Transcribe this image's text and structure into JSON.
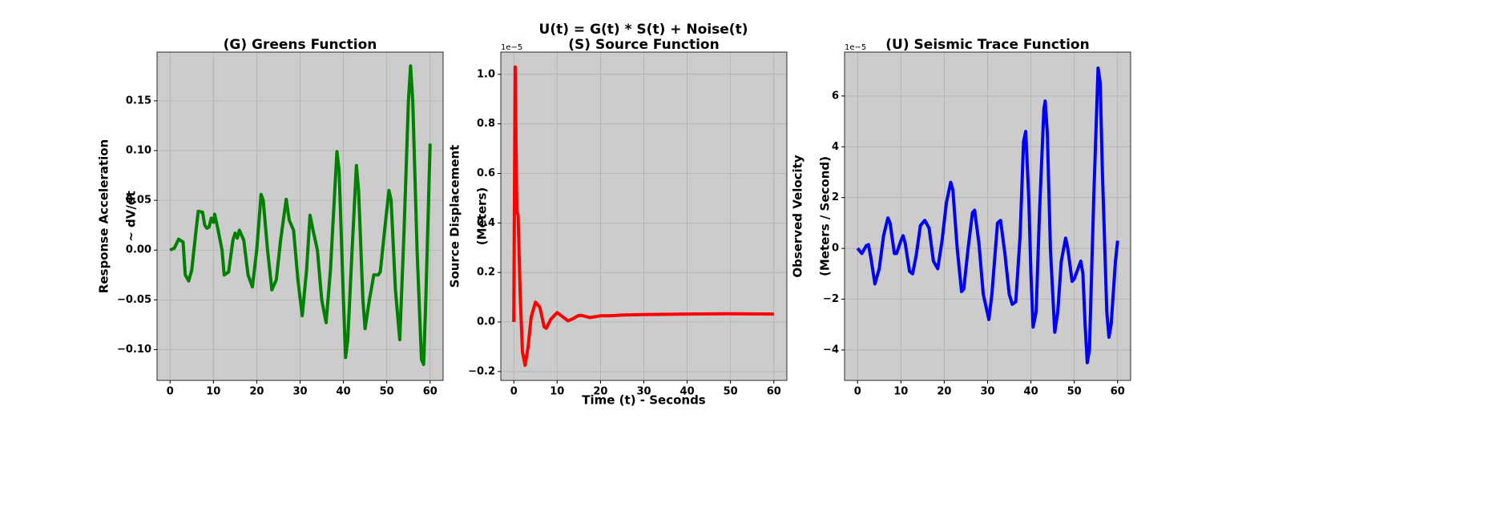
{
  "title": "U(t) = G(t) * S(t) + Noise(t)",
  "chart_data": [
    {
      "type": "line",
      "title": "(G) Greens Function",
      "ylabel": [
        "Response Acceleration",
        "~ dV/dt"
      ],
      "color": "#008000",
      "grid": true,
      "xlim": [
        -3,
        63
      ],
      "ylim": [
        -0.131,
        0.199
      ],
      "xticks": [
        0,
        10,
        20,
        30,
        40,
        50,
        60
      ],
      "yticks": [
        {
          "value": -0.1,
          "label": "−0.10"
        },
        {
          "value": -0.05,
          "label": "−0.05"
        },
        {
          "value": 0,
          "label": "0.00"
        },
        0.05,
        {
          "value": 0.1,
          "label": "0.10"
        },
        0.15
      ],
      "x": [
        0,
        1,
        2,
        3,
        3.5,
        4.3,
        5,
        6,
        6.5,
        7.5,
        8,
        8.5,
        9,
        9.5,
        10,
        10.3,
        11,
        12,
        12.5,
        13.5,
        14.5,
        15,
        15.5,
        16,
        17,
        18,
        19,
        20,
        21,
        21.5,
        22.5,
        23.5,
        24.5,
        25.5,
        26.8,
        27.5,
        28.5,
        29.5,
        30.5,
        31.5,
        32.3,
        33,
        34,
        35,
        36,
        37,
        38,
        38.5,
        39,
        40,
        40.5,
        41,
        42,
        43,
        43.5,
        44.5,
        45,
        46,
        47,
        48,
        48.5,
        49.5,
        50.5,
        51,
        52,
        53,
        54,
        55,
        55.5,
        56,
        57,
        58,
        58.5,
        59,
        60
      ],
      "values": [
        0,
        0.002,
        0.011,
        0.008,
        -0.025,
        -0.031,
        -0.02,
        0.02,
        0.039,
        0.038,
        0.025,
        0.022,
        0.023,
        0.032,
        0.028,
        0.036,
        0.022,
        0,
        -0.025,
        -0.022,
        0.01,
        0.017,
        0.012,
        0.02,
        0.01,
        -0.025,
        -0.037,
        0,
        0.056,
        0.05,
        0,
        -0.04,
        -0.03,
        0.01,
        0.051,
        0.03,
        0.02,
        -0.03,
        -0.066,
        -0.02,
        0.035,
        0.02,
        0,
        -0.05,
        -0.073,
        -0.02,
        0.06,
        0.099,
        0.08,
        -0.05,
        -0.108,
        -0.09,
        0,
        0.085,
        0.06,
        -0.05,
        -0.079,
        -0.05,
        -0.025,
        -0.025,
        -0.022,
        0.02,
        0.06,
        0.05,
        -0.04,
        -0.09,
        0.02,
        0.15,
        0.185,
        0.15,
        0,
        -0.11,
        -0.115,
        -0.05,
        0.107
      ]
    },
    {
      "type": "line",
      "title": "(S) Source Function",
      "ylabel": [
        "Source Displacement",
        "(Meters)"
      ],
      "xlabel": "Time (t) - Seconds",
      "offset_text": "1e−5",
      "color": "#ff0000",
      "grid": true,
      "xlim": [
        -3,
        63
      ],
      "ylim": [
        -0.236,
        1.09
      ],
      "xticks": [
        0,
        10,
        20,
        30,
        40,
        50,
        60
      ],
      "yticks": [
        {
          "value": -0.2,
          "label": "−0.2"
        },
        {
          "value": 0,
          "label": "0.0"
        },
        0.2,
        0.4,
        0.6,
        0.8,
        {
          "value": 1,
          "label": "1.0"
        }
      ],
      "x": [
        0,
        0.3,
        0.7,
        1,
        1.5,
        2,
        2.6,
        3.3,
        4,
        5,
        6,
        7,
        7.5,
        8.5,
        10,
        11,
        12.5,
        13.5,
        15,
        16,
        17.5,
        20,
        22,
        25,
        30,
        40,
        50,
        60
      ],
      "values": [
        0,
        1.03,
        0.45,
        0.43,
        0.1,
        -0.12,
        -0.175,
        -0.1,
        0.02,
        0.08,
        0.06,
        -0.02,
        -0.025,
        0.01,
        0.038,
        0.025,
        0.005,
        0.012,
        0.027,
        0.025,
        0.018,
        0.025,
        0.025,
        0.028,
        0.03,
        0.032,
        0.033,
        0.032
      ]
    },
    {
      "type": "line",
      "title": "(U) Seismic Trace Function",
      "ylabel": [
        "Observed Velocity",
        "(Meters / Second)"
      ],
      "offset_text": "1e−5",
      "color": "#0000ff",
      "grid": true,
      "xlim": [
        -3,
        63
      ],
      "ylim": [
        -5.2,
        7.73
      ],
      "xticks": [
        0,
        10,
        20,
        30,
        40,
        50,
        60
      ],
      "yticks": [
        {
          "value": -4,
          "label": "−4"
        },
        {
          "value": -2,
          "label": "−2"
        },
        0,
        2,
        4,
        6
      ],
      "x": [
        0,
        1,
        2,
        2.5,
        3,
        4,
        5,
        6,
        7,
        7.5,
        8.5,
        9,
        10,
        10.5,
        11,
        12,
        12.7,
        13.5,
        14.5,
        15.5,
        16.5,
        17.5,
        18.5,
        19.5,
        20.5,
        21.5,
        22,
        23,
        24,
        24.5,
        25.5,
        26.5,
        27,
        28,
        29,
        30.3,
        31,
        32.3,
        33,
        34,
        35,
        35.7,
        36.5,
        37.5,
        38.3,
        38.8,
        39.5,
        40,
        40.5,
        41.2,
        42,
        43,
        43.3,
        43.8,
        44.5,
        45.5,
        46.2,
        47,
        48,
        48.5,
        49.5,
        50,
        51.5,
        52,
        52.5,
        53,
        53.5,
        54.5,
        55.5,
        56,
        56.5,
        57.5,
        58,
        58.5,
        59.5,
        60
      ],
      "values": [
        0,
        -0.2,
        0.1,
        0.15,
        -0.3,
        -1.4,
        -0.8,
        0.5,
        1.2,
        1,
        -0.2,
        -0.2,
        0.3,
        0.5,
        0.2,
        -0.9,
        -1,
        -0.3,
        0.9,
        1.1,
        0.8,
        -0.5,
        -0.8,
        0.3,
        1.8,
        2.6,
        2.3,
        0,
        -1.7,
        -1.6,
        0,
        1.4,
        1.5,
        0.2,
        -1.8,
        -2.8,
        -1.8,
        1,
        1.1,
        -0.2,
        -1.8,
        -2.2,
        -2.1,
        0.5,
        4.2,
        4.6,
        2,
        -1,
        -3.1,
        -2.5,
        1.5,
        5.5,
        5.8,
        4.5,
        0,
        -3.3,
        -2.5,
        -0.5,
        0.4,
        0,
        -1.3,
        -1.2,
        -0.5,
        -1,
        -3,
        -4.5,
        -4,
        2,
        7.1,
        6.5,
        3,
        -2.5,
        -3.5,
        -3,
        -0.5,
        0.3
      ]
    }
  ]
}
